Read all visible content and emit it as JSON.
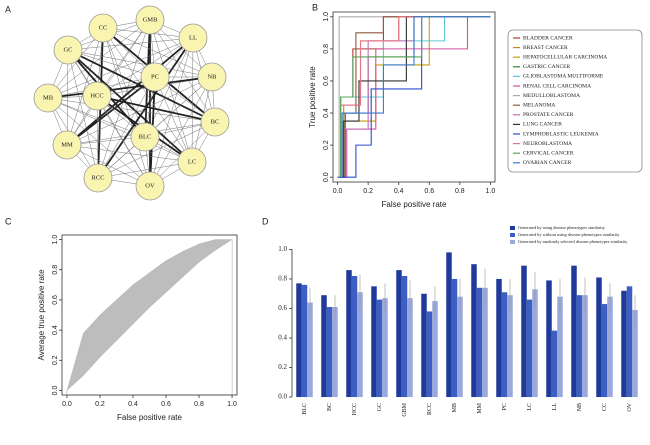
{
  "chart_data": [
    {
      "type": "network",
      "panel": "A",
      "nodes": [
        "GMB",
        "CC",
        "LL",
        "GC",
        "PC",
        "NB",
        "HCC",
        "MB",
        "BC",
        "BLC",
        "MM",
        "LC",
        "RCC",
        "OV"
      ]
    },
    {
      "type": "line",
      "panel": "B",
      "xlabel": "False positive rate",
      "ylabel": "True positive rate",
      "xlim": [
        -0.03,
        1.03
      ],
      "ylim": [
        -0.03,
        1.03
      ],
      "xticks": [
        {
          "value": 0,
          "label": "0.0"
        },
        {
          "value": 0.2,
          "label": "0.2"
        },
        {
          "value": 0.4,
          "label": "0.4"
        },
        {
          "value": 0.6,
          "label": "0.6"
        },
        {
          "value": 0.8,
          "label": "0.8"
        },
        {
          "value": 1,
          "label": "1.0"
        }
      ],
      "yticks": [
        {
          "value": 0,
          "label": "0.0"
        },
        {
          "value": 0.2,
          "label": "0.2"
        },
        {
          "value": 0.4,
          "label": "0.4"
        },
        {
          "value": 0.6,
          "label": "0.6"
        },
        {
          "value": 0.8,
          "label": "0.8"
        },
        {
          "value": 1,
          "label": "1.0"
        }
      ],
      "series": [
        {
          "name": "BLADDER CANCER",
          "color": "#b03a2e",
          "x": [
            0,
            0.02,
            0.02,
            0.1,
            0.1,
            0.3,
            0.3,
            1
          ],
          "values": [
            0,
            0,
            0.5,
            0.5,
            0.8,
            0.8,
            1,
            1
          ]
        },
        {
          "name": "BREAST CANCER",
          "color": "#d4801c",
          "x": [
            0,
            0.04,
            0.04,
            0.15,
            0.15,
            0.4,
            0.4,
            1
          ],
          "values": [
            0,
            0,
            0.45,
            0.45,
            0.85,
            0.85,
            1,
            1
          ]
        },
        {
          "name": "HEPATOCELLULAR CARCINOMA",
          "color": "#c8a200",
          "x": [
            0,
            0.03,
            0.03,
            0.25,
            0.25,
            0.6,
            0.6,
            1
          ],
          "values": [
            0,
            0,
            0.35,
            0.35,
            0.7,
            0.7,
            1,
            1
          ]
        },
        {
          "name": "GASTRIC CANCER",
          "color": "#2e8b2e",
          "x": [
            0,
            0.05,
            0.05,
            0.2,
            0.2,
            0.5,
            0.5,
            1
          ],
          "values": [
            0,
            0,
            0.4,
            0.4,
            0.75,
            0.75,
            1,
            1
          ]
        },
        {
          "name": "GLIOBLASTOMA MULTIFORME",
          "color": "#5fc8d8",
          "x": [
            0,
            0.02,
            0.02,
            0.3,
            0.3,
            0.7,
            0.7,
            1
          ],
          "values": [
            0,
            0,
            0.5,
            0.5,
            0.85,
            0.85,
            1,
            1
          ]
        },
        {
          "name": "RENAL CELL CARCINOMA",
          "color": "#d94fa0",
          "x": [
            0,
            0.06,
            0.06,
            0.25,
            0.25,
            0.85,
            0.85,
            1
          ],
          "values": [
            0,
            0,
            0.3,
            0.3,
            0.8,
            0.8,
            1,
            1
          ]
        },
        {
          "name": "MEDULLOBLASTOMA",
          "color": "#aaaaaa",
          "x": [
            0,
            0.01,
            0.01,
            1
          ],
          "values": [
            0,
            0,
            1,
            1
          ]
        },
        {
          "name": "MELANOMA",
          "color": "#8c5a3c",
          "x": [
            0,
            0.05,
            0.05,
            0.12,
            0.12,
            0.3,
            0.3,
            1
          ],
          "values": [
            0,
            0,
            0.4,
            0.4,
            0.9,
            0.9,
            1,
            1
          ]
        },
        {
          "name": "PROSTATE CANCER",
          "color": "#c86ab8",
          "x": [
            0,
            0.03,
            0.03,
            0.2,
            0.2,
            0.5,
            0.5,
            1
          ],
          "values": [
            0,
            0,
            0.3,
            0.3,
            0.85,
            0.85,
            1,
            1
          ]
        },
        {
          "name": "LUNG CANCER",
          "color": "#303030",
          "x": [
            0,
            0.04,
            0.04,
            0.14,
            0.14,
            0.45,
            0.45,
            1
          ],
          "values": [
            0,
            0,
            0.35,
            0.35,
            0.6,
            0.6,
            1,
            1
          ]
        },
        {
          "name": "LYMPHOBLASTIC LEUKEMIA",
          "color": "#2e4bd0",
          "x": [
            0,
            0.12,
            0.12,
            0.22,
            0.22,
            0.55,
            0.55,
            1
          ],
          "values": [
            0,
            0,
            0.2,
            0.2,
            0.55,
            0.55,
            1,
            1
          ]
        },
        {
          "name": "NEUROBLASTOMA",
          "color": "#e8738a",
          "x": [
            0,
            0.02,
            0.02,
            0.15,
            0.15,
            0.4,
            0.4,
            1
          ],
          "values": [
            0,
            0,
            0.45,
            0.45,
            0.85,
            0.85,
            1,
            1
          ]
        },
        {
          "name": "CERVICAL CANCER",
          "color": "#5aa55a",
          "x": [
            0,
            0.02,
            0.02,
            0.1,
            0.1,
            0.55,
            0.55,
            1
          ],
          "values": [
            0,
            0,
            0.5,
            0.5,
            0.75,
            0.75,
            1,
            1
          ]
        },
        {
          "name": "OVARIAN CANCER",
          "color": "#3a7ad0",
          "x": [
            0,
            0.03,
            0.03,
            0.3,
            0.3,
            0.5,
            0.5,
            1
          ],
          "values": [
            0,
            0,
            0.4,
            0.4,
            0.7,
            0.7,
            1,
            1
          ]
        }
      ]
    },
    {
      "type": "band",
      "panel": "C",
      "xlabel": "False positive rate",
      "ylabel": "Average true positive rate",
      "color": "#bdbdbd",
      "xlim": [
        -0.03,
        1.03
      ],
      "ylim": [
        -0.03,
        1.03
      ],
      "xticks": [
        {
          "value": 0,
          "label": "0.0"
        },
        {
          "value": 0.2,
          "label": "0.2"
        },
        {
          "value": 0.4,
          "label": "0.4"
        },
        {
          "value": 0.6,
          "label": "0.6"
        },
        {
          "value": 0.8,
          "label": "0.8"
        },
        {
          "value": 1,
          "label": "1.0"
        }
      ],
      "yticks": [
        {
          "value": 0,
          "label": "0.0"
        },
        {
          "value": 0.2,
          "label": "0.2"
        },
        {
          "value": 0.4,
          "label": "0.4"
        },
        {
          "value": 0.6,
          "label": "0.6"
        },
        {
          "value": 0.8,
          "label": "0.8"
        },
        {
          "value": 1,
          "label": "1.0"
        }
      ],
      "x": [
        0,
        0.1,
        0.2,
        0.3,
        0.4,
        0.5,
        0.6,
        0.7,
        0.8,
        0.9,
        1
      ],
      "lower": [
        0,
        0.1,
        0.22,
        0.33,
        0.44,
        0.55,
        0.65,
        0.75,
        0.85,
        0.93,
        1
      ],
      "upper": [
        0,
        0.38,
        0.5,
        0.6,
        0.7,
        0.78,
        0.86,
        0.92,
        0.97,
        1,
        1
      ]
    },
    {
      "type": "bar",
      "panel": "D",
      "ylim": [
        -0.02,
        1.03
      ],
      "yticks": [
        {
          "value": 0,
          "label": "0.0"
        },
        {
          "value": 0.2,
          "label": "0.2"
        },
        {
          "value": 0.4,
          "label": "0.4"
        },
        {
          "value": 0.6,
          "label": "0.6"
        },
        {
          "value": 0.8,
          "label": "0.8"
        },
        {
          "value": 1,
          "label": "1.0"
        }
      ],
      "categories": [
        "BLC",
        "BC",
        "HCC",
        "GC",
        "GBM",
        "RCC",
        "MB",
        "MM",
        "PC",
        "LC",
        "LL",
        "NB",
        "CC",
        "OV"
      ],
      "series": [
        {
          "name": "Generated by using disease phenotypes similarity",
          "color": "#1f3a9a",
          "values": [
            0.77,
            0.69,
            0.86,
            0.75,
            0.86,
            0.7,
            0.98,
            0.9,
            0.8,
            0.89,
            0.79,
            0.89,
            0.81,
            0.72
          ]
        },
        {
          "name": "Generated by without using disease phenotypes similarity",
          "color": "#3d5fc4",
          "values": [
            0.76,
            0.61,
            0.82,
            0.66,
            0.82,
            0.58,
            0.8,
            0.74,
            0.71,
            0.66,
            0.45,
            0.69,
            0.63,
            0.75
          ]
        },
        {
          "name": "Generated by randomly selected disease phenotypes similarity",
          "color": "#9aa8dc",
          "values": [
            0.64,
            0.61,
            0.71,
            0.67,
            0.67,
            0.65,
            0.68,
            0.74,
            0.69,
            0.73,
            0.68,
            0.69,
            0.68,
            0.59
          ],
          "errors": [
            0.1,
            0.08,
            0.12,
            0.1,
            0.12,
            0.1,
            0.12,
            0.13,
            0.11,
            0.12,
            0.12,
            0.12,
            0.09,
            0.1
          ]
        }
      ]
    }
  ]
}
